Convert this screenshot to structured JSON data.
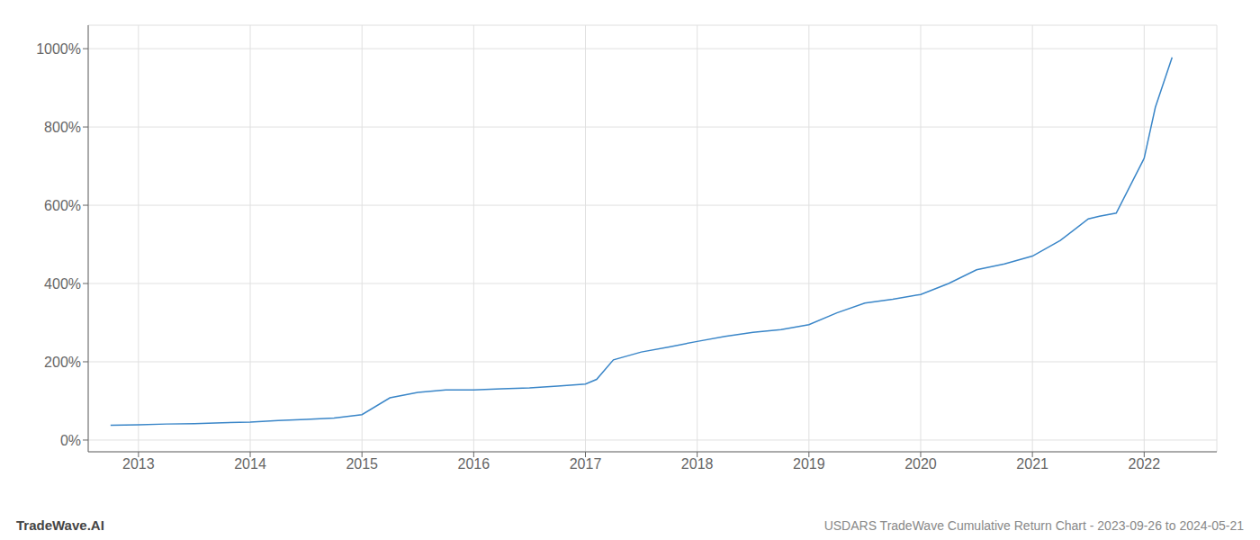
{
  "chart_data": {
    "type": "line",
    "title": "USDARS TradeWave Cumulative Return Chart - 2023-09-26 to 2024-05-21",
    "annotations": [
      "TradeWave.AI"
    ],
    "color": "#3a86c8",
    "grid": true,
    "x": [
      2012.75,
      2013.0,
      2013.25,
      2013.5,
      2013.75,
      2014.0,
      2014.25,
      2014.5,
      2014.75,
      2015.0,
      2015.25,
      2015.5,
      2015.75,
      2016.0,
      2016.1,
      2016.25,
      2016.5,
      2016.75,
      2017.0,
      2017.1,
      2017.25,
      2017.5,
      2017.75,
      2018.0,
      2018.25,
      2018.5,
      2018.75,
      2019.0,
      2019.25,
      2019.5,
      2019.75,
      2020.0,
      2020.25,
      2020.5,
      2020.75,
      2021.0,
      2021.25,
      2021.5,
      2021.6,
      2021.75,
      2022.0,
      2022.1,
      2022.25
    ],
    "values": [
      38,
      39,
      41,
      42,
      44,
      46,
      50,
      53,
      56,
      65,
      108,
      122,
      128,
      128,
      129,
      131,
      133,
      138,
      143,
      155,
      205,
      225,
      238,
      252,
      265,
      275,
      282,
      295,
      325,
      350,
      360,
      372,
      400,
      435,
      450,
      470,
      510,
      565,
      572,
      580,
      720,
      850,
      978
    ],
    "xlim": [
      2012.55,
      2022.65
    ],
    "xticks": [
      2013,
      2014,
      2015,
      2016,
      2017,
      2018,
      2019,
      2020,
      2021,
      2022
    ],
    "ylim": [
      -30,
      1060
    ],
    "yticks": [
      {
        "value": 0,
        "label": "0%"
      },
      {
        "value": 200,
        "label": "200%"
      },
      {
        "value": 400,
        "label": "400%"
      },
      {
        "value": 600,
        "label": "600%"
      },
      {
        "value": 800,
        "label": "800%"
      },
      {
        "value": 1000,
        "label": "1000%"
      }
    ]
  }
}
